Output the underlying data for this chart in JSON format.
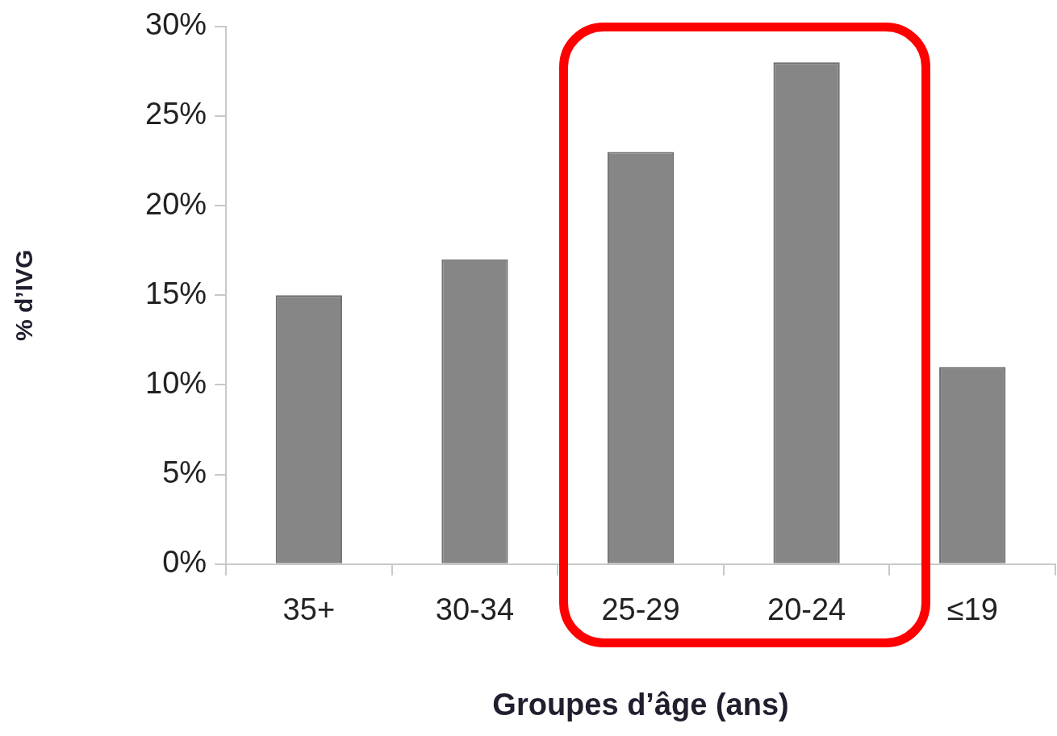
{
  "chart_data": {
    "type": "bar",
    "xlabel": "Groupes d’âge (ans)",
    "ylabel": "% d’IVG",
    "categories": [
      "35+",
      "30-34",
      "25-29",
      "20-24",
      "≤19"
    ],
    "values": [
      15,
      17,
      23,
      28,
      11
    ],
    "color": "#868686",
    "ylim": [
      0,
      30
    ],
    "yticks": [
      {
        "value": 0,
        "label": "0%"
      },
      {
        "value": 5,
        "label": "5%"
      },
      {
        "value": 10,
        "label": "10%"
      },
      {
        "value": 15,
        "label": "15%"
      },
      {
        "value": 20,
        "label": "20%"
      },
      {
        "value": 25,
        "label": "25%"
      },
      {
        "value": 30,
        "label": "30%"
      }
    ],
    "grid": false,
    "legend": false
  }
}
